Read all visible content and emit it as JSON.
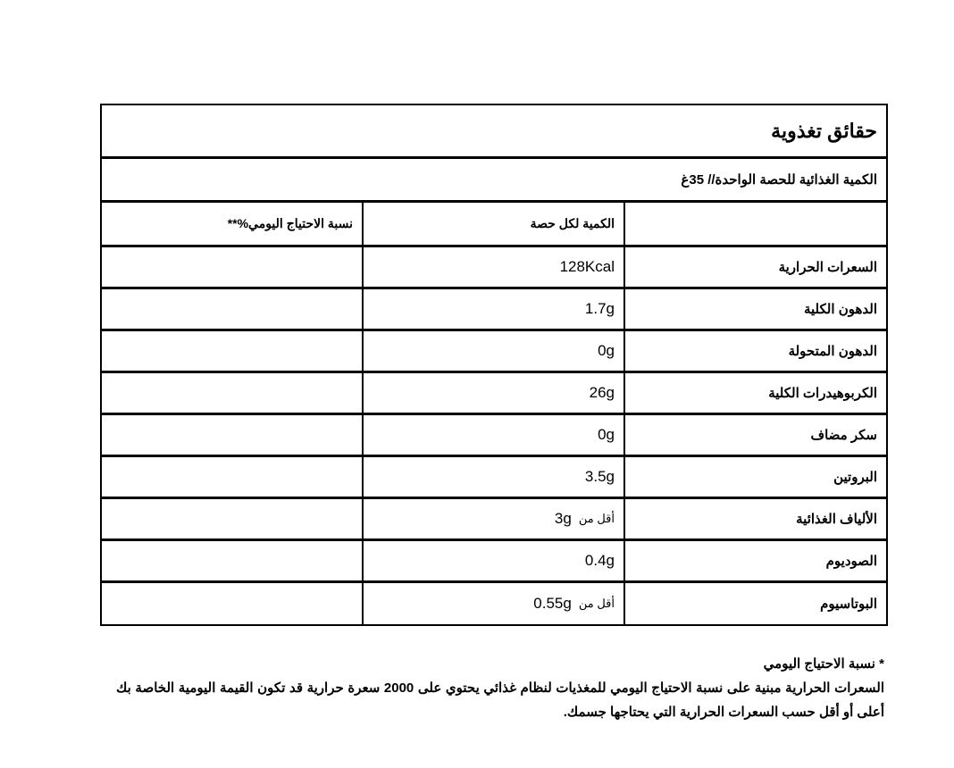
{
  "title": "حقائق تغذوية",
  "serving": "الكمية الغذائية للحصة الواحدة// 35غ",
  "headers": {
    "nutrient": "",
    "amount": "الكمية لكل حصة",
    "daily": "نسبة الاحتياج اليومي%**"
  },
  "less_than": "أقل من",
  "rows": [
    {
      "name": "السعرات الحرارية",
      "prefix": "",
      "value": "128Kcal",
      "daily": ""
    },
    {
      "name": "الدهون الكلية",
      "prefix": "",
      "value": "1.7g",
      "daily": ""
    },
    {
      "name": "الدهون المتحولة",
      "prefix": "",
      "value": "0g",
      "daily": ""
    },
    {
      "name": "الكربوهيدرات الكلية",
      "prefix": "",
      "value": "26g",
      "daily": ""
    },
    {
      "name": "سكر مضاف",
      "prefix": "",
      "value": "0g",
      "daily": ""
    },
    {
      "name": "البروتين",
      "prefix": "",
      "value": "3.5g",
      "daily": ""
    },
    {
      "name": "الألياف الغذائية",
      "prefix": "أقل من",
      "value": "3g",
      "daily": ""
    },
    {
      "name": "الصوديوم",
      "prefix": "",
      "value": "0.4g",
      "daily": ""
    },
    {
      "name": "البوتاسيوم",
      "prefix": "أقل من",
      "value": "0.55g",
      "daily": ""
    }
  ],
  "notes": {
    "heading": "* نسبة الاحتياج اليومي",
    "body": "السعرات الحرارية مبنية على نسبة الاحتياج اليومي للمغذيات لنظام غذائي يحتوي على 2000 سعرة حرارية قد تكون القيمة اليومية الخاصة بك أعلى أو أقل حسب السعرات الحرارية التي يحتاجها جسمك."
  }
}
